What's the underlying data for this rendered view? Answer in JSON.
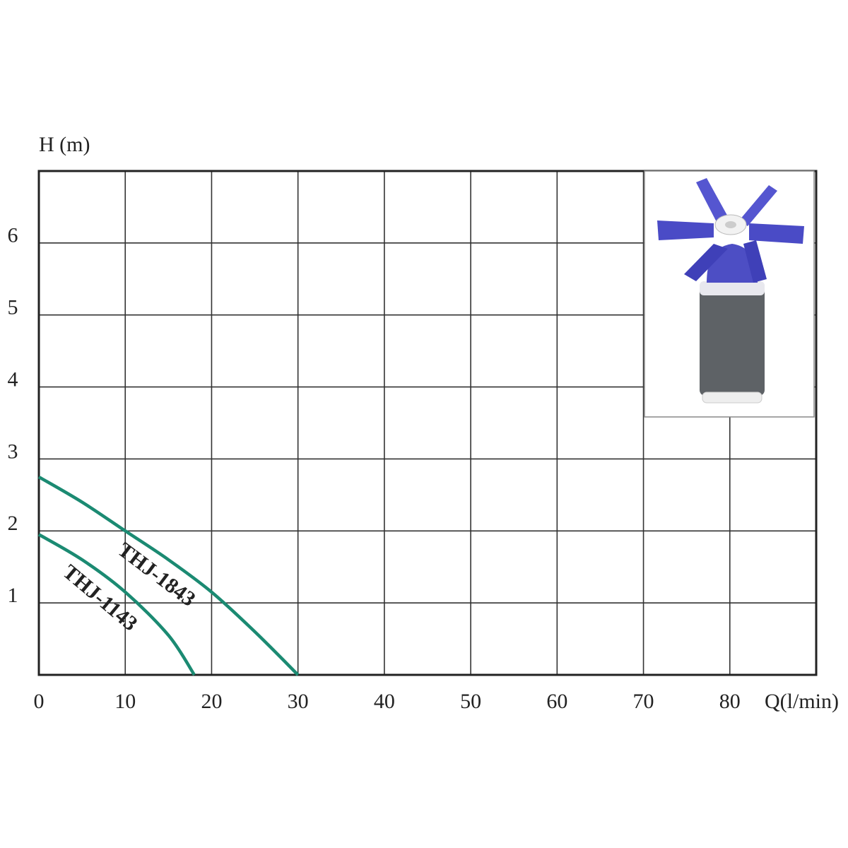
{
  "chart_data": {
    "type": "line",
    "y_label": "H (m)",
    "x_label": "Q(l/min)",
    "xlim": [
      0,
      90
    ],
    "ylim": [
      0,
      7
    ],
    "xticks": [
      0,
      10,
      20,
      30,
      40,
      50,
      60,
      70,
      80
    ],
    "yticks": [
      1,
      2,
      3,
      4,
      5,
      6
    ],
    "grid": true,
    "series": [
      {
        "name": "THJ-1843",
        "color": "#1b8a72",
        "x": [
          0,
          5,
          10,
          15,
          20,
          25,
          30
        ],
        "values": [
          2.75,
          2.4,
          2.0,
          1.6,
          1.15,
          0.6,
          0
        ]
      },
      {
        "name": "THJ-1143",
        "color": "#1b8a72",
        "x": [
          0,
          5,
          10,
          15,
          18
        ],
        "values": [
          1.95,
          1.6,
          1.15,
          0.55,
          0
        ]
      }
    ]
  }
}
